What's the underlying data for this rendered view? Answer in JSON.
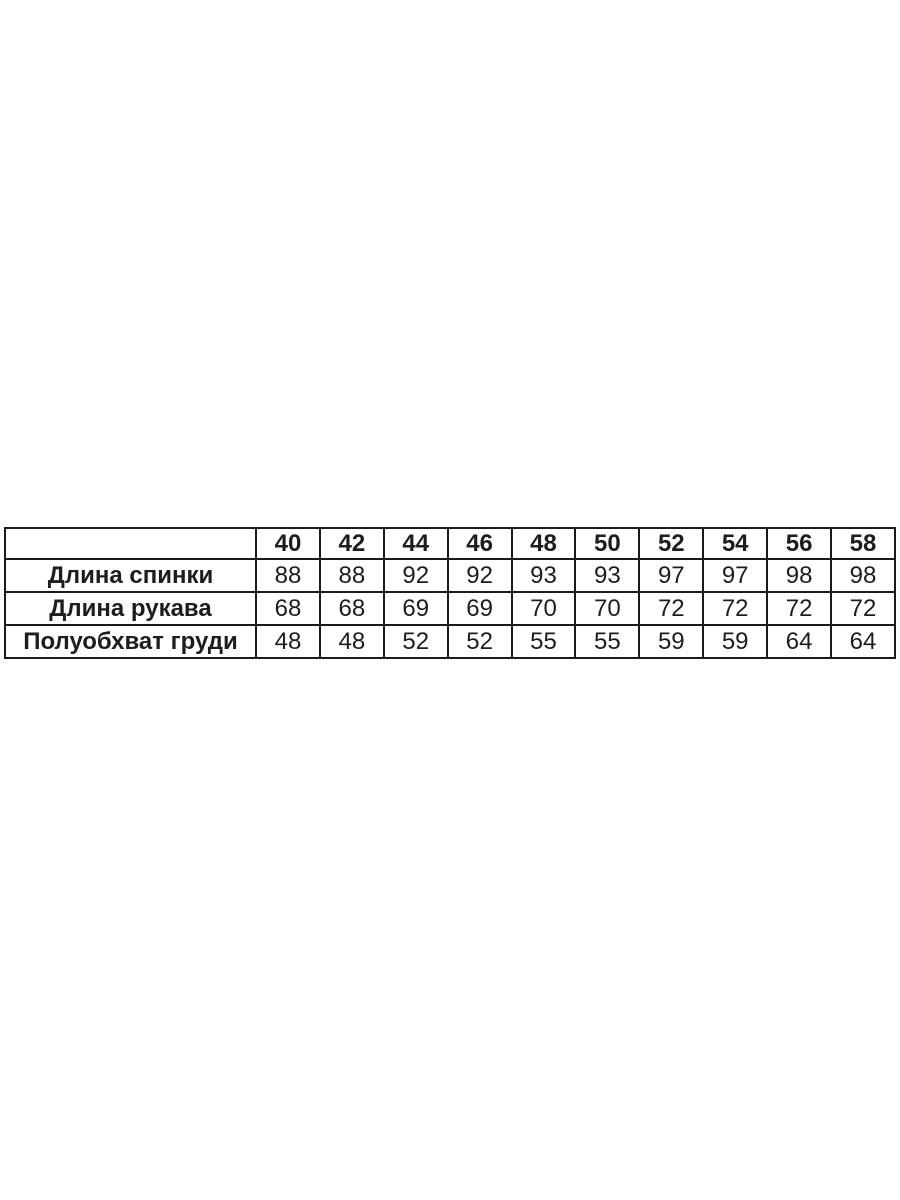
{
  "chart_data": {
    "type": "table",
    "title": "",
    "columns": [
      "",
      "40",
      "42",
      "44",
      "46",
      "48",
      "50",
      "52",
      "54",
      "56",
      "58"
    ],
    "rows": [
      {
        "label": "Длина спинки",
        "values": [
          "88",
          "88",
          "92",
          "92",
          "93",
          "93",
          "97",
          "97",
          "98",
          "98"
        ]
      },
      {
        "label": "Длина рукава",
        "values": [
          "68",
          "68",
          "69",
          "69",
          "70",
          "70",
          "72",
          "72",
          "72",
          "72"
        ]
      },
      {
        "label": "Полуобхват груди",
        "values": [
          "48",
          "48",
          "52",
          "52",
          "55",
          "55",
          "59",
          "59",
          "64",
          "64"
        ]
      }
    ],
    "layout": {
      "border_color": "#1b1b1b",
      "text_color": "#1d1d1d",
      "background": "#ffffff",
      "grid": "all-borders",
      "header_bold": true,
      "label_column_bold": true
    }
  }
}
